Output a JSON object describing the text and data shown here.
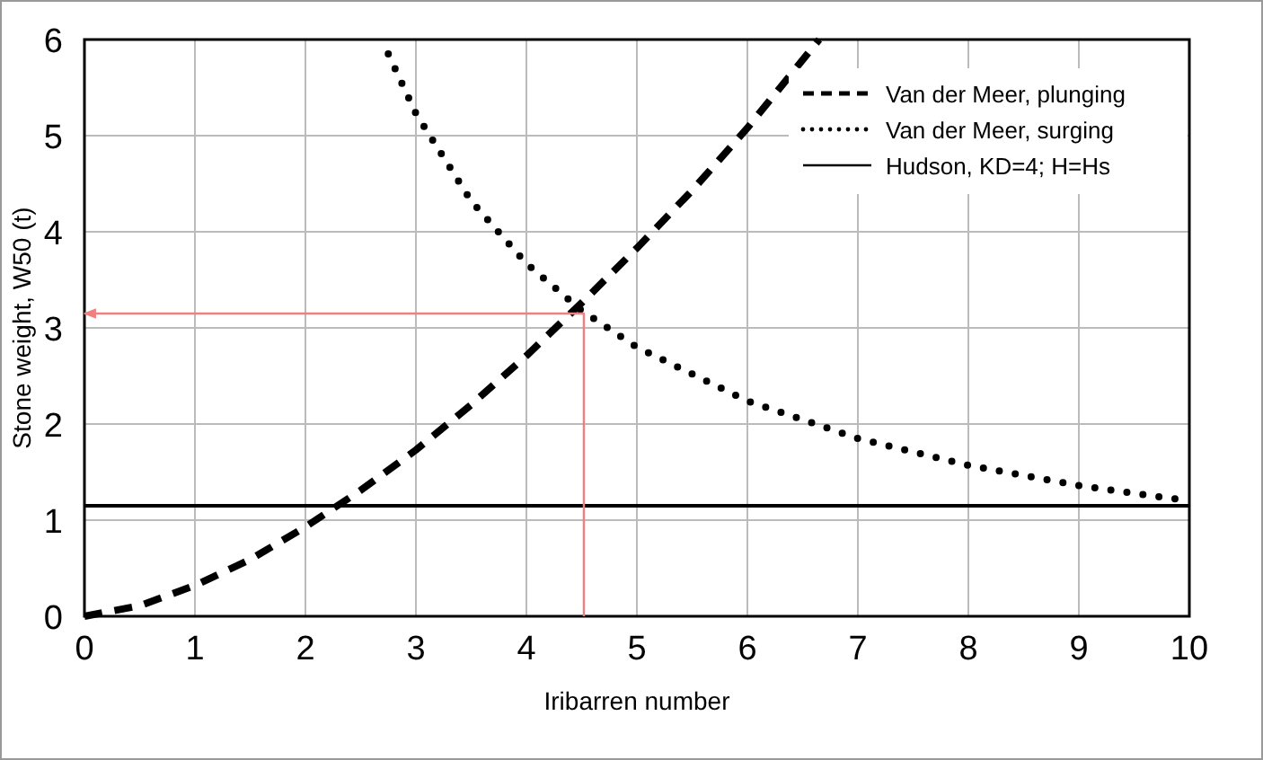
{
  "chart_data": {
    "type": "line",
    "xlabel": "Iribarren number",
    "ylabel": "Stone weight, W50 (t)",
    "xlim": [
      0,
      10
    ],
    "ylim": [
      0,
      6
    ],
    "xticks": [
      0,
      1,
      2,
      3,
      4,
      5,
      6,
      7,
      8,
      9,
      10
    ],
    "yticks": [
      0,
      1,
      2,
      3,
      4,
      5,
      6
    ],
    "grid": true,
    "legend": "top right",
    "marker": "none",
    "series": [
      {
        "name": "Van der Meer, plunging",
        "color": "#000000",
        "line_style": "dashed",
        "x": [
          0,
          0.5,
          1,
          1.5,
          2,
          2.5,
          3,
          3.5,
          4,
          4.5,
          5,
          5.5,
          6,
          6.65
        ],
        "values": [
          0,
          0.11,
          0.32,
          0.59,
          0.93,
          1.31,
          1.73,
          2.2,
          2.71,
          3.26,
          3.83,
          4.43,
          5.08,
          6
        ]
      },
      {
        "name": "Van der Meer, surging",
        "color": "#000000",
        "line_style": "dotted",
        "x": [
          2.75,
          3,
          3.5,
          4,
          4.5,
          5,
          6,
          7,
          8,
          9,
          10
        ],
        "values": [
          5.85,
          5.23,
          4.32,
          3.67,
          3.18,
          2.8,
          2.24,
          1.85,
          1.57,
          1.36,
          1.2
        ]
      },
      {
        "name": "Hudson, KD=4; H=Hs",
        "color": "#000000",
        "line_style": "solid",
        "x": [
          0,
          10
        ],
        "values": [
          1.15,
          1.15
        ]
      },
      {
        "color": "#f08080",
        "line_style": "solid",
        "x": [
          4.52,
          4.52,
          0
        ],
        "values": [
          0,
          3.15,
          3.15
        ]
      }
    ]
  }
}
